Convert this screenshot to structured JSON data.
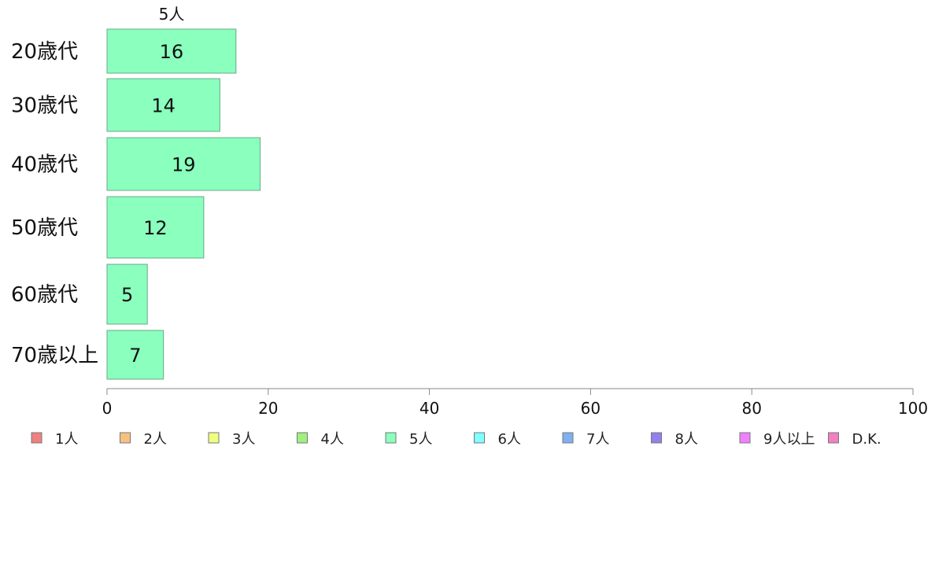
{
  "chart_data": {
    "type": "bar",
    "orientation": "horizontal",
    "categories": [
      "20歳代",
      "30歳代",
      "40歳代",
      "50歳代",
      "60歳代",
      "70歳以上"
    ],
    "series": [
      {
        "name": "5人",
        "values": [
          16,
          14,
          19,
          12,
          5,
          7
        ],
        "color": "#8affbe"
      }
    ],
    "xlim": [
      0,
      100
    ],
    "xticks": [
      0,
      20,
      40,
      60,
      80,
      100
    ],
    "grid": false,
    "legend": {
      "placement": "bottom",
      "items": [
        {
          "label": "1人",
          "color": "#f08080"
        },
        {
          "label": "2人",
          "color": "#f8c080"
        },
        {
          "label": "3人",
          "color": "#f0ff80"
        },
        {
          "label": "4人",
          "color": "#a0f080"
        },
        {
          "label": "5人",
          "color": "#8affbe"
        },
        {
          "label": "6人",
          "color": "#80ffff"
        },
        {
          "label": "7人",
          "color": "#80b0f0"
        },
        {
          "label": "8人",
          "color": "#9080f0"
        },
        {
          "label": "9人以上",
          "color": "#f080ff"
        },
        {
          "label": "D.K.",
          "color": "#f080c0"
        }
      ]
    }
  }
}
